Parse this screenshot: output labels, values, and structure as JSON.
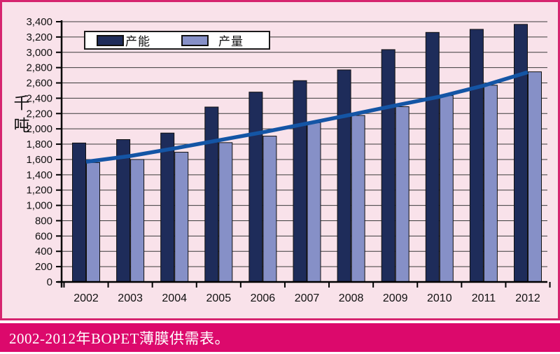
{
  "caption": {
    "text": "2002-2012年BOPET薄膜供需表。"
  },
  "colors": {
    "panel_background": "#f9e2ea",
    "panel_border": "#d6246f",
    "caption_background": "#dc096c",
    "caption_text": "#ffffff",
    "gridline": "#3b3b3b",
    "axis": "#000000",
    "capacity_bar": "#1e2c5a",
    "output_bar": "#8690c7",
    "bar_outline": "#111111",
    "trend_line": "#1455a5"
  },
  "chart_data": {
    "type": "bar",
    "title": "",
    "xlabel": "",
    "ylabel": "千吨",
    "ylim": [
      0,
      3400
    ],
    "ytick_step": 200,
    "ytick_labels": [
      "0",
      "200",
      "400",
      "600",
      "800",
      "1,000",
      "1,200",
      "1,400",
      "1,600",
      "1,800",
      "2,000",
      "2,200",
      "2,400",
      "2,600",
      "2,800",
      "3,000",
      "3,200",
      "3,400"
    ],
    "grid": true,
    "legend_position": "top-left",
    "categories": [
      "2002",
      "2003",
      "2004",
      "2005",
      "2006",
      "2007",
      "2008",
      "2009",
      "2010",
      "2011",
      "2012"
    ],
    "series": [
      {
        "name": "产能",
        "color": "#1e2c5a",
        "values": [
          1815,
          1860,
          1945,
          2285,
          2480,
          2630,
          2770,
          3035,
          3260,
          3300,
          3365
        ]
      },
      {
        "name": "产量",
        "color": "#8690c7",
        "values": [
          1560,
          1600,
          1695,
          1820,
          1905,
          2080,
          2175,
          2290,
          2435,
          2570,
          2745
        ]
      }
    ],
    "trend_line": {
      "series": "产量趋势",
      "color": "#1455a5",
      "values": [
        1570,
        1645,
        1745,
        1850,
        1955,
        2070,
        2185,
        2305,
        2420,
        2565,
        2740
      ]
    }
  }
}
